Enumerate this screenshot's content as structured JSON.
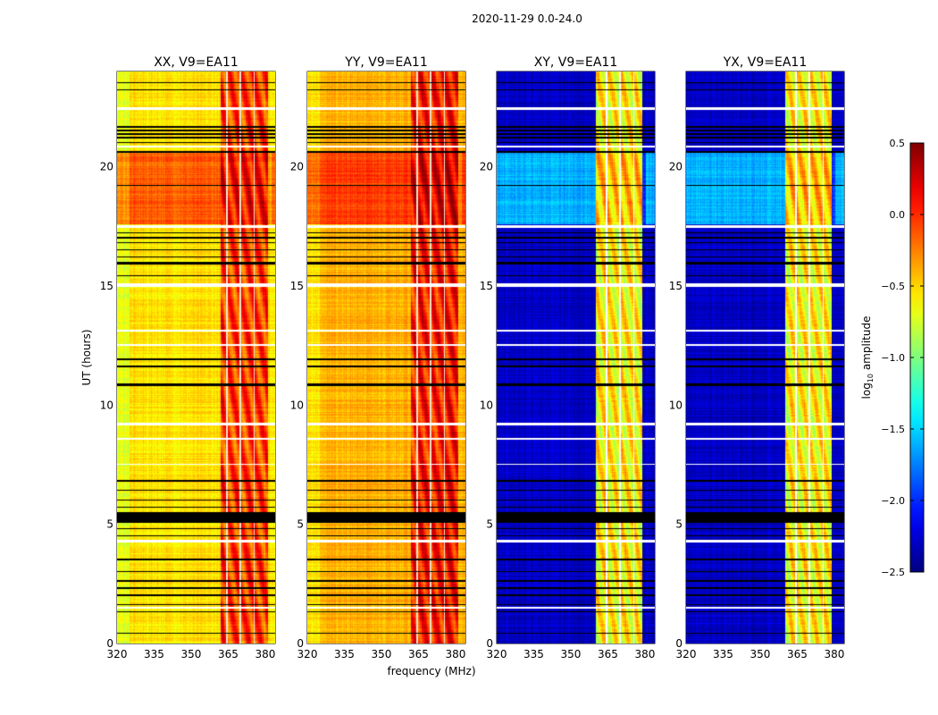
{
  "suptitle": "2020-11-29 0.0-24.0",
  "chart_data": {
    "type": "heatmap",
    "xlabel": "frequency (MHz)",
    "ylabel": "UT (hours)",
    "xlim": [
      320,
      384
    ],
    "ylim": [
      0,
      24
    ],
    "xticks": [
      "320",
      "335",
      "350",
      "365",
      "380"
    ],
    "xtick_values": [
      320,
      335,
      350,
      365,
      380
    ],
    "yticks": [
      "0",
      "5",
      "10",
      "15",
      "20"
    ],
    "ytick_values": [
      0,
      5,
      10,
      15,
      20
    ],
    "colorbar": {
      "label": "log10 amplitude",
      "range": [
        -2.5,
        0.5
      ],
      "ticks": [
        "0.5",
        "0.0",
        "−0.5",
        "−1.0",
        "−1.5",
        "−2.0",
        "−2.5"
      ],
      "tick_values": [
        0.5,
        0.0,
        -0.5,
        -1.0,
        -1.5,
        -2.0,
        -2.5
      ],
      "colormap": "jet"
    },
    "panels": [
      {
        "title": "XX, V9=EA11",
        "base": -0.55,
        "band": [
          362,
          381
        ],
        "band_level": -0.05,
        "bright_hours": [
          17.6,
          20.6
        ],
        "bright_level": -0.15
      },
      {
        "title": "YY, V9=EA11",
        "base": -0.4,
        "band": [
          362,
          381
        ],
        "band_level": 0.05,
        "bright_hours": [
          17.6,
          20.6
        ],
        "bright_level": -0.05
      },
      {
        "title": "XY, V9=EA11",
        "base": -2.3,
        "band": [
          360,
          379
        ],
        "band_level": -0.6,
        "bright_hours": [
          17.6,
          20.6
        ],
        "bright_level": -1.6
      },
      {
        "title": "YX, V9=EA11",
        "base": -2.3,
        "band": [
          360,
          379
        ],
        "band_level": -0.6,
        "bright_hours": [
          17.6,
          20.6
        ],
        "bright_level": -1.6
      }
    ],
    "flagged_black_hours": [
      [
        5.05,
        5.5
      ],
      [
        0.4,
        0.45
      ],
      [
        1.3,
        1.35
      ],
      [
        1.6,
        1.65
      ],
      [
        2.0,
        2.05
      ],
      [
        2.3,
        2.35
      ],
      [
        2.6,
        2.65
      ],
      [
        3.0,
        3.05
      ],
      [
        3.5,
        3.55
      ],
      [
        4.5,
        4.55
      ],
      [
        4.8,
        4.85
      ],
      [
        5.7,
        5.75
      ],
      [
        6.0,
        6.05
      ],
      [
        6.4,
        6.45
      ],
      [
        6.8,
        6.85
      ],
      [
        10.8,
        10.9
      ],
      [
        11.6,
        11.65
      ],
      [
        11.9,
        11.95
      ],
      [
        15.4,
        15.45
      ],
      [
        15.9,
        16.0
      ],
      [
        16.2,
        16.25
      ],
      [
        16.5,
        16.55
      ],
      [
        16.8,
        16.85
      ],
      [
        17.0,
        17.05
      ],
      [
        17.2,
        17.25
      ],
      [
        19.2,
        19.25
      ],
      [
        20.6,
        20.65
      ],
      [
        21.0,
        21.05
      ],
      [
        21.2,
        21.25
      ],
      [
        21.35,
        21.4
      ],
      [
        21.5,
        21.55
      ],
      [
        21.65,
        21.7
      ],
      [
        23.2,
        23.25
      ],
      [
        23.5,
        23.55
      ]
    ],
    "flagged_white_hours": [
      [
        1.45,
        1.55
      ],
      [
        4.25,
        4.35
      ],
      [
        8.55,
        8.62
      ],
      [
        9.15,
        9.25
      ],
      [
        7.5,
        7.55
      ],
      [
        14.95,
        15.1
      ],
      [
        17.45,
        17.55
      ],
      [
        20.8,
        20.9
      ],
      [
        22.4,
        22.5
      ],
      [
        13.1,
        13.15
      ],
      [
        12.5,
        12.55
      ]
    ],
    "channel_gaps_mhz": [
      364.5,
      370,
      375.5
    ]
  }
}
